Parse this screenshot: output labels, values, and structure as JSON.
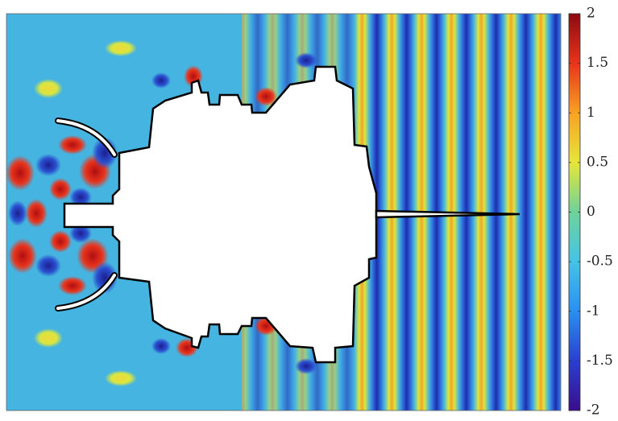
{
  "chart_data": {
    "type": "field",
    "clim": [
      -2,
      2
    ],
    "cticks": [
      -2,
      -1.5,
      -1,
      -0.5,
      0,
      0.5,
      1,
      1.5,
      2
    ],
    "colormap": [
      "#3a0d8c",
      "#2a3fd0",
      "#2b8ff0",
      "#46c3e6",
      "#6fd29a",
      "#e6e63a",
      "#f7a224",
      "#e8341c",
      "#8c0a10"
    ]
  }
}
